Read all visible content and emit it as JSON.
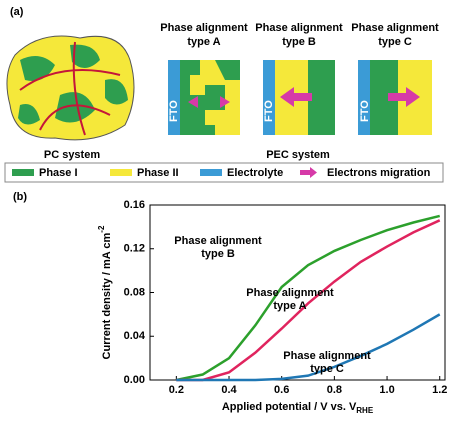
{
  "diagram": {
    "panel_label": "(a)",
    "pc_label": "PC system",
    "pec_label": "PEC system",
    "types": [
      {
        "title": [
          "Phase alignment",
          "type A"
        ],
        "fto": "FTO"
      },
      {
        "title": [
          "Phase alignment",
          "type B"
        ],
        "fto": "FTO"
      },
      {
        "title": [
          "Phase alignment",
          "type C"
        ],
        "fto": "FTO"
      }
    ],
    "legend": [
      "Phase I",
      "Phase II",
      "Electrolyte",
      "Electrons migration"
    ]
  },
  "chart_data": {
    "type": "line",
    "panel_label": "(b)",
    "ylabel": "Current density / mA cm",
    "ylabel_sup": "-2",
    "xlabel": "Applied potential / V vs. V",
    "xlabel_sub": "RHE",
    "x": [
      0.2,
      0.3,
      0.4,
      0.5,
      0.6,
      0.7,
      0.8,
      0.9,
      1.0,
      1.1,
      1.2
    ],
    "series": [
      {
        "name": "type B",
        "color": "#2ca02c",
        "values": [
          0,
          0.005,
          0.02,
          0.05,
          0.085,
          0.105,
          0.118,
          0.128,
          0.137,
          0.144,
          0.15
        ]
      },
      {
        "name": "type A",
        "color": "#e0245e",
        "values": [
          0,
          0,
          0.007,
          0.025,
          0.047,
          0.07,
          0.09,
          0.108,
          0.122,
          0.135,
          0.146
        ]
      },
      {
        "name": "type C",
        "color": "#1f77b4",
        "values": [
          0,
          0,
          0,
          0,
          0.001,
          0.004,
          0.012,
          0.022,
          0.033,
          0.046,
          0.06
        ]
      }
    ],
    "annotations": [
      [
        "Phase alignment",
        "type B"
      ],
      [
        "Phase alignment",
        "type A"
      ],
      [
        "Phase alignment",
        "type C"
      ]
    ],
    "xlim": [
      0.1,
      1.22
    ],
    "xticks": [
      0.2,
      0.4,
      0.6,
      0.8,
      {
        "value": 1,
        "label": "1.0"
      },
      1.2
    ],
    "ylim": [
      0,
      0.16
    ],
    "yticks": [
      {
        "value": 0,
        "label": "0.00"
      },
      0.04,
      0.08,
      0.12,
      0.16
    ]
  }
}
